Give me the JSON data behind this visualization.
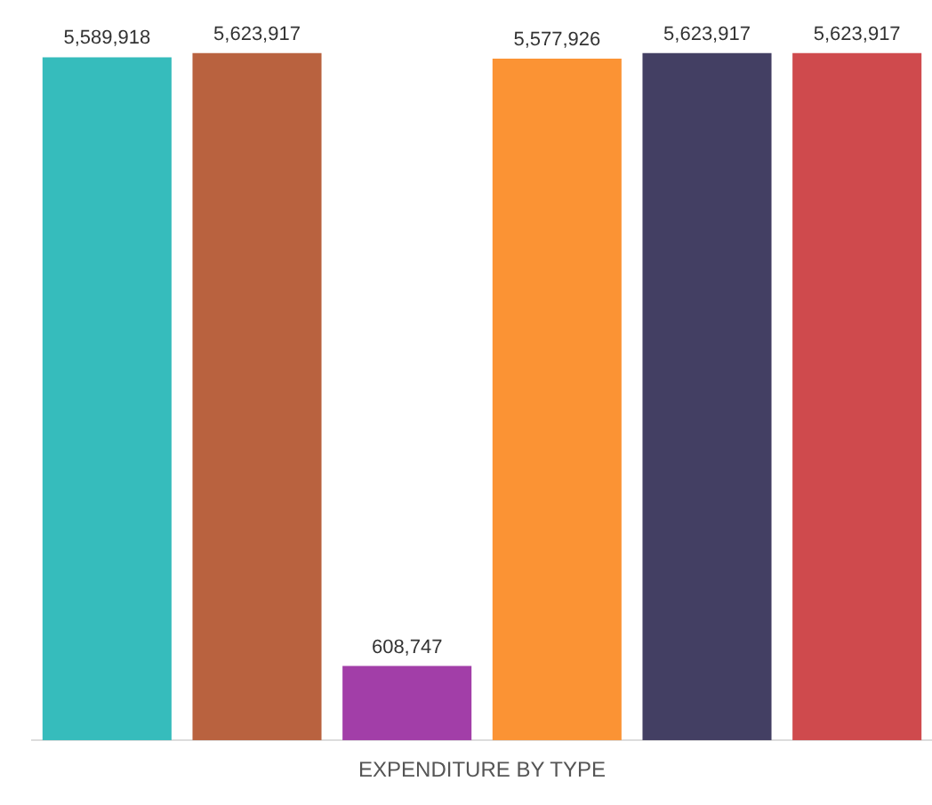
{
  "chart_data": {
    "type": "bar",
    "xlabel": "EXPENDITURE BY TYPE",
    "categories": [
      null,
      null,
      null,
      null,
      null,
      null
    ],
    "values": [
      5589918,
      5623917,
      608747,
      5577926,
      5623917,
      5623917
    ],
    "colors": [
      "#36bcbc",
      "#b9623f",
      "#a23ea8",
      "#fb9334",
      "#433f63",
      "#cf4a4d"
    ],
    "value_labels": [
      "5,589,918",
      "5,623,917",
      "608,747",
      "5,577,926",
      "5,623,917",
      "5,623,917"
    ],
    "grid": false,
    "legend": false
  }
}
